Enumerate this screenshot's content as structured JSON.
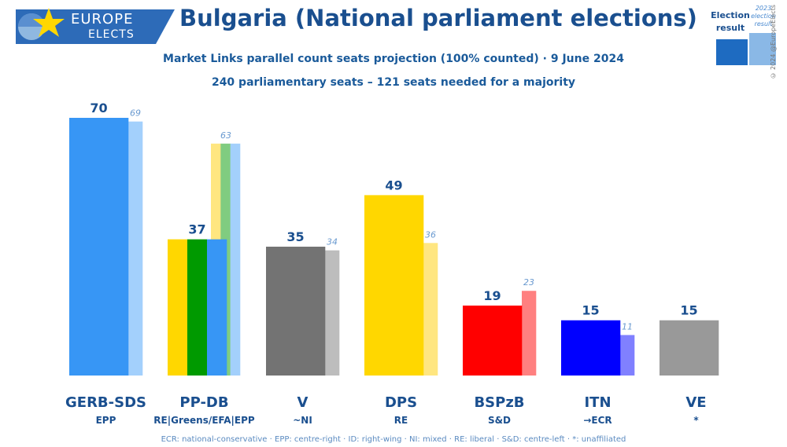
{
  "header": {
    "logo_line1": "EUROPE",
    "logo_line2": "ELECTS",
    "title": "Bulgaria (National parliament elections)",
    "subtitle1": "Market Links parallel count seats projection (100% counted) · 9 June 2024",
    "subtitle2": "240 parliamentary seats – 121 seats needed for a majority"
  },
  "legend": {
    "current_label": "Election result",
    "previous_label": "2023 election result",
    "current_color": "#1e6bc1",
    "previous_color": "#8ab8e6"
  },
  "copyright": "© 2024 @EuropeElects",
  "footer": "ECR: national-conservative · EPP: centre-right · ID: right-wing · NI: mixed · RE: liberal · S&D: centre-left · *: unaffiliated",
  "chart_data": {
    "type": "bar",
    "title": "Bulgaria (National parliament elections)",
    "categories": [
      "GERB-SDS",
      "PP-DB",
      "V",
      "DPS",
      "BSPzB",
      "ITN",
      "VE"
    ],
    "groups": [
      "EPP",
      "RE|Greens/EFA|EPP",
      "~NI",
      "RE",
      "S&D",
      "→ECR",
      "*"
    ],
    "series": [
      {
        "name": "Election result",
        "values": [
          70,
          37,
          35,
          49,
          19,
          15,
          15
        ]
      },
      {
        "name": "2023 election result",
        "values": [
          69,
          63,
          34,
          36,
          23,
          11,
          null
        ]
      }
    ],
    "colors_current": [
      [
        "#3796f5"
      ],
      [
        "#ffd700",
        "#009a00",
        "#3796f5"
      ],
      [
        "#737373"
      ],
      [
        "#ffd700"
      ],
      [
        "#ff0000"
      ],
      [
        "#0000ff"
      ],
      [
        "#999999"
      ]
    ],
    "colors_previous": [
      [
        "#a3d0fc"
      ],
      [
        "#ffe680",
        "#80cc80",
        "#a3d0fc"
      ],
      [
        "#bdbdbd"
      ],
      [
        "#ffe680"
      ],
      [
        "#ff8080"
      ],
      [
        "#8080ff"
      ],
      [
        "#cccccc"
      ]
    ],
    "ylim": [
      0,
      70
    ]
  }
}
